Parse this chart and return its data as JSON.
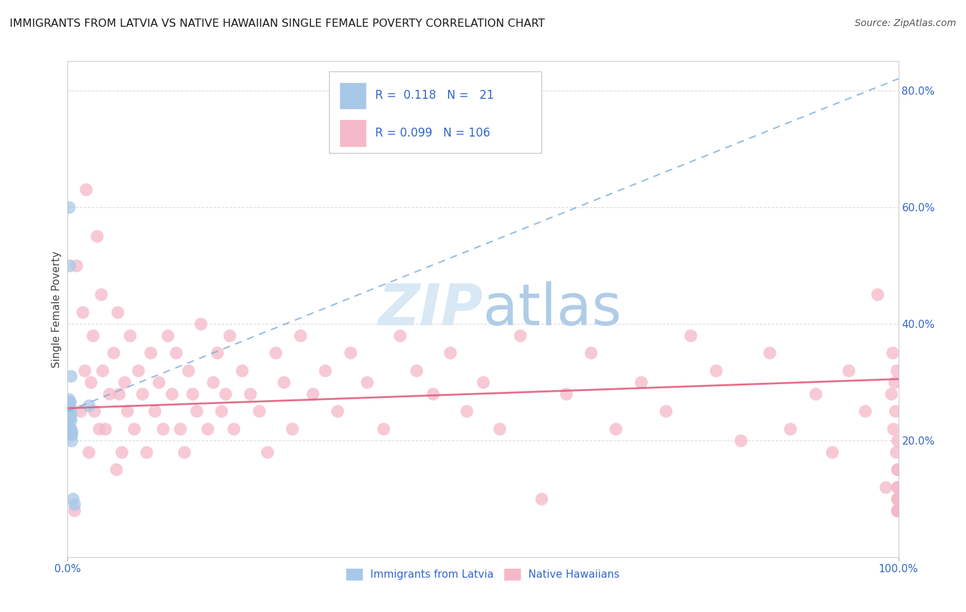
{
  "title": "IMMIGRANTS FROM LATVIA VS NATIVE HAWAIIAN SINGLE FEMALE POVERTY CORRELATION CHART",
  "source": "Source: ZipAtlas.com",
  "ylabel": "Single Female Poverty",
  "xlim": [
    0.0,
    1.0
  ],
  "ylim": [
    0.0,
    0.85
  ],
  "y_ticks_right": [
    0.2,
    0.4,
    0.6,
    0.8
  ],
  "y_tick_labels_right": [
    "20.0%",
    "40.0%",
    "60.0%",
    "80.0%"
  ],
  "legend1_label": "Immigrants from Latvia",
  "legend2_label": "Native Hawaiians",
  "blue_R": "0.118",
  "blue_N": "21",
  "pink_R": "0.099",
  "pink_N": "106",
  "blue_dot_color": "#a8c8e8",
  "blue_edge_color": "#a8c8e8",
  "pink_dot_color": "#f5b8c8",
  "pink_edge_color": "#f5b8c8",
  "blue_line_color": "#7aaddd",
  "pink_line_color": "#e06080",
  "legend_box_color": "#f0f0f0",
  "watermark_color": "#d8e8f5",
  "grid_color": "#cccccc",
  "text_blue": "#3366cc",
  "title_color": "#1a1a1a",
  "blue_line_x0": 0.0,
  "blue_line_y0": 0.25,
  "blue_line_x1": 1.0,
  "blue_line_y1": 0.82,
  "pink_line_x0": 0.0,
  "pink_line_y0": 0.255,
  "pink_line_x1": 1.0,
  "pink_line_y1": 0.305,
  "blue_points_x": [
    0.001,
    0.001,
    0.001,
    0.002,
    0.002,
    0.002,
    0.003,
    0.003,
    0.003,
    0.003,
    0.004,
    0.004,
    0.004,
    0.004,
    0.004,
    0.005,
    0.005,
    0.005,
    0.006,
    0.008,
    0.025
  ],
  "blue_points_y": [
    0.245,
    0.27,
    0.6,
    0.24,
    0.265,
    0.5,
    0.255,
    0.265,
    0.24,
    0.22,
    0.21,
    0.22,
    0.235,
    0.245,
    0.31,
    0.2,
    0.21,
    0.215,
    0.1,
    0.09,
    0.26
  ],
  "pink_points_x": [
    0.008,
    0.01,
    0.015,
    0.018,
    0.02,
    0.022,
    0.025,
    0.028,
    0.03,
    0.032,
    0.035,
    0.038,
    0.04,
    0.042,
    0.045,
    0.05,
    0.055,
    0.058,
    0.06,
    0.062,
    0.065,
    0.068,
    0.072,
    0.075,
    0.08,
    0.085,
    0.09,
    0.095,
    0.1,
    0.105,
    0.11,
    0.115,
    0.12,
    0.125,
    0.13,
    0.135,
    0.14,
    0.145,
    0.15,
    0.155,
    0.16,
    0.168,
    0.175,
    0.18,
    0.185,
    0.19,
    0.195,
    0.2,
    0.21,
    0.22,
    0.23,
    0.24,
    0.25,
    0.26,
    0.27,
    0.28,
    0.295,
    0.31,
    0.325,
    0.34,
    0.36,
    0.38,
    0.4,
    0.42,
    0.44,
    0.46,
    0.48,
    0.5,
    0.52,
    0.545,
    0.57,
    0.6,
    0.63,
    0.66,
    0.69,
    0.72,
    0.75,
    0.78,
    0.81,
    0.845,
    0.87,
    0.9,
    0.92,
    0.94,
    0.96,
    0.975,
    0.985,
    0.991,
    0.993,
    0.994,
    0.995,
    0.996,
    0.997,
    0.998,
    0.999,
    0.999,
    0.999,
    0.999,
    0.999,
    0.999,
    0.999,
    0.999,
    0.999,
    0.999,
    0.999,
    0.999
  ],
  "pink_points_y": [
    0.08,
    0.5,
    0.25,
    0.42,
    0.32,
    0.63,
    0.18,
    0.3,
    0.38,
    0.25,
    0.55,
    0.22,
    0.45,
    0.32,
    0.22,
    0.28,
    0.35,
    0.15,
    0.42,
    0.28,
    0.18,
    0.3,
    0.25,
    0.38,
    0.22,
    0.32,
    0.28,
    0.18,
    0.35,
    0.25,
    0.3,
    0.22,
    0.38,
    0.28,
    0.35,
    0.22,
    0.18,
    0.32,
    0.28,
    0.25,
    0.4,
    0.22,
    0.3,
    0.35,
    0.25,
    0.28,
    0.38,
    0.22,
    0.32,
    0.28,
    0.25,
    0.18,
    0.35,
    0.3,
    0.22,
    0.38,
    0.28,
    0.32,
    0.25,
    0.35,
    0.3,
    0.22,
    0.38,
    0.32,
    0.28,
    0.35,
    0.25,
    0.3,
    0.22,
    0.38,
    0.1,
    0.28,
    0.35,
    0.22,
    0.3,
    0.25,
    0.38,
    0.32,
    0.2,
    0.35,
    0.22,
    0.28,
    0.18,
    0.32,
    0.25,
    0.45,
    0.12,
    0.28,
    0.35,
    0.22,
    0.3,
    0.25,
    0.18,
    0.32,
    0.2,
    0.15,
    0.08,
    0.12,
    0.1,
    0.08,
    0.15,
    0.1,
    0.12,
    0.08,
    0.1,
    0.08
  ]
}
